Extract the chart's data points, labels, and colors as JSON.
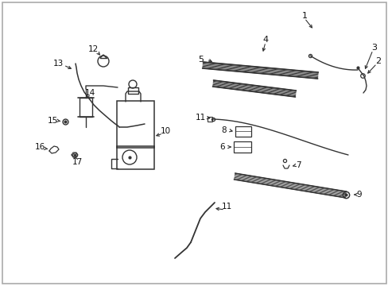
{
  "bg_color": "#ffffff",
  "border_color": "#aaaaaa",
  "line_color": "#333333",
  "text_color": "#111111",
  "fig_width": 4.89,
  "fig_height": 3.6,
  "dpi": 100
}
